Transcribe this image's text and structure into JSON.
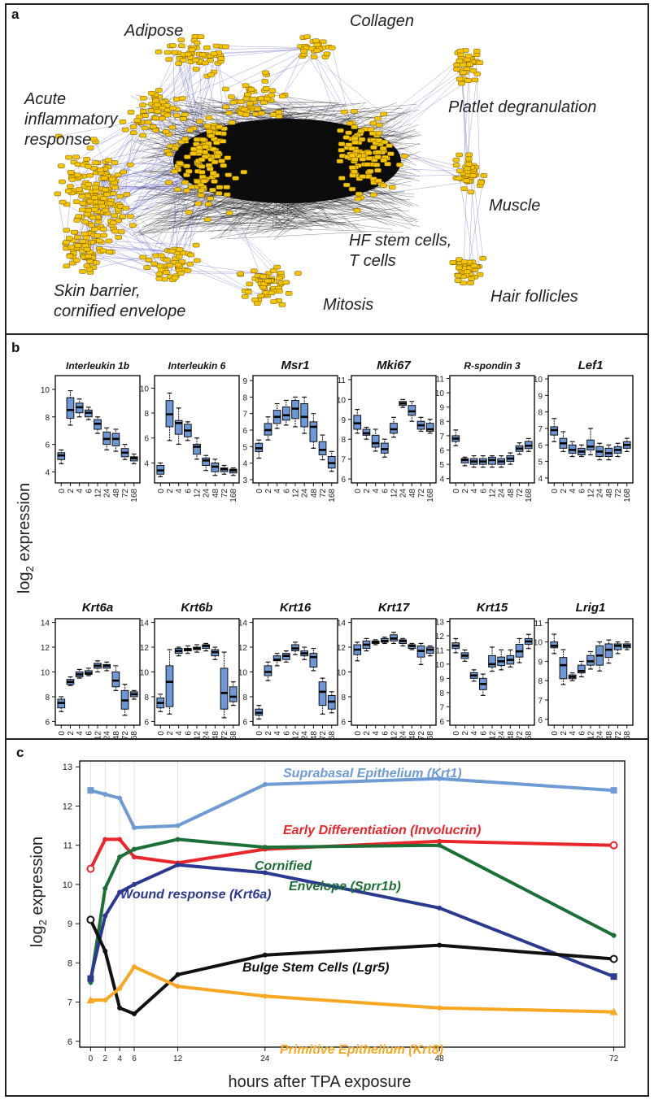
{
  "panel_a": {
    "label": "a",
    "clusters": [
      {
        "name": "Adipose"
      },
      {
        "name": "Collagen"
      },
      {
        "name": "Platlet degranulation"
      },
      {
        "name": "Acute"
      },
      {
        "name": "inflammatory"
      },
      {
        "name": "response"
      },
      {
        "name": "Muscle"
      },
      {
        "name": "HF stem cells,"
      },
      {
        "name": "T cells"
      },
      {
        "name": "Hair follicles"
      },
      {
        "name": "Skin barrier,"
      },
      {
        "name": "cornified envelope"
      },
      {
        "name": "Mitosis"
      }
    ]
  },
  "panel_b": {
    "label": "b",
    "ylabel": "log2 expression",
    "x_ticks": [
      "0",
      "2",
      "4",
      "6",
      "12",
      "24",
      "48",
      "72",
      "168"
    ],
    "plots": [
      {
        "title": "Interleukin 1b",
        "ylim": [
          3.2,
          11
        ],
        "yticks": [
          4,
          6,
          8,
          10
        ],
        "medians": [
          5.2,
          8.5,
          8.7,
          8.3,
          7.5,
          6.4,
          6.4,
          5.4,
          5.0
        ],
        "q1": [
          4.9,
          7.9,
          8.3,
          8.0,
          7.1,
          6.0,
          5.9,
          5.1,
          4.8
        ],
        "q3": [
          5.4,
          9.4,
          9.0,
          8.5,
          7.8,
          6.9,
          6.8,
          5.7,
          5.1
        ],
        "wlo": [
          4.6,
          7.4,
          8.0,
          7.8,
          6.8,
          5.6,
          5.5,
          4.9,
          4.6
        ],
        "whi": [
          5.6,
          9.9,
          9.3,
          8.7,
          8.0,
          7.2,
          7.1,
          6.0,
          5.3
        ]
      },
      {
        "title": "Interleukin 6",
        "ylim": [
          2.4,
          11
        ],
        "yticks": [
          4,
          6,
          8,
          10
        ],
        "medians": [
          3.4,
          7.9,
          7.2,
          6.6,
          5.3,
          4.2,
          3.7,
          3.5,
          3.4
        ],
        "q1": [
          3.1,
          6.9,
          6.3,
          6.1,
          4.7,
          3.8,
          3.3,
          3.3,
          3.2
        ],
        "q3": [
          3.8,
          9.0,
          7.4,
          7.1,
          5.5,
          4.4,
          4.0,
          3.6,
          3.5
        ],
        "wlo": [
          2.9,
          5.8,
          5.5,
          5.8,
          4.3,
          3.4,
          3.0,
          3.1,
          3.0
        ],
        "whi": [
          4.0,
          9.6,
          8.4,
          7.3,
          6.0,
          4.6,
          4.3,
          3.8,
          3.6
        ]
      },
      {
        "title": "Msr1",
        "ylim": [
          2.8,
          9.3
        ],
        "yticks": [
          3,
          4,
          5,
          6,
          7,
          8,
          9
        ],
        "medians": [
          4.9,
          6.0,
          6.8,
          6.9,
          7.3,
          6.8,
          6.2,
          4.8,
          4.0
        ],
        "q1": [
          4.7,
          5.7,
          6.4,
          6.6,
          6.7,
          6.2,
          5.3,
          4.5,
          3.7
        ],
        "q3": [
          5.2,
          6.4,
          7.2,
          7.4,
          7.8,
          7.6,
          6.5,
          5.3,
          4.4
        ],
        "wlo": [
          4.3,
          5.4,
          6.1,
          6.3,
          6.2,
          5.8,
          4.9,
          4.2,
          3.5
        ],
        "whi": [
          5.4,
          6.8,
          7.6,
          7.8,
          8.0,
          8.0,
          7.0,
          5.7,
          4.7
        ]
      },
      {
        "title": "Mki67",
        "ylim": [
          5.8,
          11.2
        ],
        "yticks": [
          6,
          7,
          8,
          9,
          10,
          11
        ],
        "medians": [
          8.8,
          8.3,
          7.8,
          7.5,
          8.5,
          9.8,
          9.4,
          8.7,
          8.5
        ],
        "q1": [
          8.5,
          8.2,
          7.6,
          7.3,
          8.3,
          9.7,
          9.2,
          8.5,
          8.4
        ],
        "q3": [
          9.2,
          8.5,
          8.2,
          7.8,
          8.8,
          9.9,
          9.7,
          8.9,
          8.8
        ],
        "wlo": [
          8.3,
          8.0,
          7.4,
          7.1,
          8.1,
          9.6,
          8.9,
          8.4,
          8.3
        ],
        "whi": [
          9.5,
          8.6,
          8.5,
          8.0,
          9.1,
          10.0,
          9.9,
          9.1,
          9.0
        ]
      },
      {
        "title": "R-spondin 3",
        "ylim": [
          3.7,
          11.2
        ],
        "yticks": [
          4,
          5,
          6,
          7,
          8,
          9,
          10,
          11
        ],
        "medians": [
          6.8,
          5.3,
          5.2,
          5.2,
          5.3,
          5.2,
          5.4,
          6.1,
          6.3
        ],
        "q1": [
          6.6,
          5.1,
          5.0,
          5.0,
          5.0,
          5.0,
          5.2,
          5.9,
          6.1
        ],
        "q3": [
          7.0,
          5.4,
          5.4,
          5.4,
          5.5,
          5.4,
          5.6,
          6.3,
          6.6
        ],
        "wlo": [
          6.3,
          4.9,
          4.8,
          4.8,
          4.8,
          4.8,
          5.0,
          5.7,
          5.9
        ],
        "whi": [
          7.4,
          5.5,
          5.6,
          5.6,
          5.6,
          5.6,
          5.8,
          6.5,
          6.8
        ]
      },
      {
        "title": "Lef1",
        "ylim": [
          3.7,
          10.2
        ],
        "yticks": [
          4,
          5,
          6,
          7,
          8,
          9,
          10
        ],
        "medians": [
          6.9,
          6.1,
          5.7,
          5.6,
          5.9,
          5.6,
          5.5,
          5.7,
          6.0
        ],
        "q1": [
          6.6,
          5.8,
          5.5,
          5.4,
          5.7,
          5.3,
          5.3,
          5.5,
          5.8
        ],
        "q3": [
          7.1,
          6.4,
          6.0,
          5.8,
          6.3,
          5.9,
          5.8,
          5.9,
          6.2
        ],
        "wlo": [
          6.2,
          5.6,
          5.3,
          5.3,
          5.4,
          5.1,
          5.1,
          5.3,
          5.6
        ],
        "whi": [
          7.6,
          6.8,
          6.2,
          6.0,
          7.0,
          6.1,
          6.0,
          6.1,
          6.4
        ]
      },
      {
        "title": "Krt6a",
        "ylim": [
          5.7,
          14.3
        ],
        "yticks": [
          6,
          8,
          10,
          12,
          14
        ],
        "medians": [
          7.5,
          9.2,
          9.8,
          9.9,
          10.5,
          10.5,
          9.3,
          7.7,
          8.2
        ],
        "q1": [
          7.1,
          9.0,
          9.6,
          9.8,
          10.3,
          10.3,
          8.8,
          7.0,
          8.0
        ],
        "q3": [
          7.8,
          9.4,
          10.0,
          10.1,
          10.7,
          10.6,
          10.0,
          8.5,
          8.4
        ],
        "wlo": [
          6.8,
          8.9,
          9.5,
          9.7,
          10.0,
          10.1,
          8.5,
          6.5,
          7.8
        ],
        "whi": [
          8.0,
          9.6,
          10.2,
          10.3,
          10.9,
          10.8,
          10.5,
          9.0,
          8.5
        ]
      },
      {
        "title": "Krt6b",
        "ylim": [
          5.7,
          14.3
        ],
        "yticks": [
          6,
          8,
          10,
          12,
          14
        ],
        "medians": [
          7.5,
          9.2,
          11.7,
          11.8,
          11.9,
          12.1,
          11.6,
          8.3,
          8.0
        ],
        "q1": [
          7.1,
          7.2,
          11.5,
          11.7,
          11.8,
          11.9,
          11.3,
          7.0,
          7.6
        ],
        "q3": [
          7.9,
          10.5,
          11.9,
          11.9,
          12.0,
          12.2,
          11.8,
          10.3,
          8.8
        ],
        "wlo": [
          6.8,
          6.6,
          11.3,
          11.5,
          11.6,
          11.7,
          11.0,
          6.3,
          7.3
        ],
        "whi": [
          8.2,
          11.8,
          12.0,
          12.1,
          12.2,
          12.3,
          12.0,
          11.6,
          9.2
        ]
      },
      {
        "title": "Krt16",
        "ylim": [
          5.7,
          14.3
        ],
        "yticks": [
          6,
          8,
          10,
          12,
          14
        ],
        "medians": [
          6.7,
          10.0,
          11.0,
          11.3,
          11.9,
          11.5,
          11.2,
          8.4,
          7.6
        ],
        "q1": [
          6.5,
          9.7,
          10.9,
          11.0,
          11.7,
          11.3,
          10.4,
          7.3,
          7.0
        ],
        "q3": [
          7.0,
          10.5,
          11.3,
          11.5,
          12.2,
          11.7,
          11.5,
          9.2,
          8.1
        ],
        "wlo": [
          6.2,
          9.3,
          10.5,
          10.8,
          11.4,
          11.0,
          10.1,
          6.6,
          6.7
        ],
        "whi": [
          7.3,
          10.8,
          11.5,
          11.7,
          12.4,
          12.0,
          11.9,
          9.5,
          8.4
        ]
      },
      {
        "title": "Krt17",
        "ylim": [
          5.7,
          14.3
        ],
        "yticks": [
          6,
          8,
          10,
          12,
          14
        ],
        "medians": [
          11.8,
          12.2,
          12.4,
          12.5,
          12.7,
          12.5,
          12.1,
          11.7,
          11.8
        ],
        "q1": [
          11.4,
          11.9,
          12.3,
          12.4,
          12.5,
          12.3,
          11.9,
          11.2,
          11.5
        ],
        "q3": [
          12.2,
          12.5,
          12.5,
          12.7,
          13.0,
          12.6,
          12.2,
          12.1,
          12.0
        ],
        "wlo": [
          10.9,
          11.7,
          12.2,
          12.3,
          12.3,
          12.1,
          11.8,
          10.6,
          11.3
        ],
        "whi": [
          12.4,
          12.7,
          12.6,
          12.8,
          13.2,
          12.7,
          12.3,
          12.3,
          12.1
        ]
      },
      {
        "title": "Krt15",
        "ylim": [
          5.7,
          13.2
        ],
        "yticks": [
          6,
          7,
          8,
          9,
          10,
          11,
          12,
          13
        ],
        "medians": [
          11.3,
          10.6,
          9.2,
          8.6,
          10.0,
          10.2,
          10.3,
          10.9,
          11.6
        ],
        "q1": [
          11.1,
          10.4,
          9.0,
          8.2,
          9.8,
          9.9,
          10.0,
          10.5,
          11.4
        ],
        "q3": [
          11.5,
          10.8,
          9.4,
          9.0,
          10.6,
          10.5,
          10.6,
          11.4,
          11.8
        ],
        "wlo": [
          10.8,
          10.2,
          8.8,
          7.8,
          9.5,
          9.6,
          9.8,
          10.1,
          11.1
        ],
        "whi": [
          11.8,
          11.0,
          9.6,
          9.3,
          11.2,
          11.0,
          11.0,
          11.8,
          12.1
        ]
      },
      {
        "title": "Lrig1",
        "ylim": [
          5.7,
          11.2
        ],
        "yticks": [
          6,
          7,
          8,
          9,
          10,
          11
        ],
        "medians": [
          9.8,
          8.8,
          8.2,
          8.5,
          9.0,
          9.3,
          9.6,
          9.8,
          9.8
        ],
        "q1": [
          9.7,
          8.1,
          8.1,
          8.4,
          8.8,
          8.8,
          9.2,
          9.6,
          9.7
        ],
        "q3": [
          10.0,
          9.2,
          8.3,
          8.8,
          9.3,
          9.8,
          9.9,
          9.9,
          9.9
        ],
        "wlo": [
          9.4,
          7.8,
          8.0,
          8.2,
          8.6,
          8.5,
          8.9,
          9.4,
          9.6
        ],
        "whi": [
          10.4,
          9.6,
          8.4,
          9.0,
          9.5,
          10.0,
          10.1,
          10.0,
          10.0
        ]
      }
    ]
  },
  "panel_c": {
    "label": "c",
    "chart_data": {
      "type": "line",
      "xlabel": "hours after TPA exposure",
      "ylabel": "log2 expression",
      "x": [
        0,
        2,
        4,
        6,
        12,
        24,
        48,
        72
      ],
      "xlim": [
        -1.5,
        73.5
      ],
      "ylim": [
        5.85,
        13.15
      ],
      "yticks": [
        6,
        7,
        8,
        9,
        10,
        11,
        12,
        13
      ],
      "xticks": [
        0,
        2,
        4,
        6,
        12,
        24,
        48,
        72
      ],
      "series": [
        {
          "name": "Suprabasal Epithelium (Krt1)",
          "color": "#6f9bd4",
          "marker": "square",
          "values": [
            12.4,
            12.3,
            12.2,
            11.45,
            11.5,
            12.55,
            12.7,
            12.4
          ]
        },
        {
          "name": "Early Differentiation (Involucrin)",
          "color": "#e8262b",
          "marker": "circle",
          "values": [
            10.4,
            11.15,
            11.15,
            10.7,
            10.55,
            10.9,
            11.1,
            11.0
          ]
        },
        {
          "name": "Cornified Envelope (Sprr1b)",
          "color": "#1d6f38",
          "marker": "none",
          "values": [
            7.5,
            9.9,
            10.7,
            10.9,
            11.15,
            10.95,
            11.0,
            8.7
          ]
        },
        {
          "name": "Wound response (Krt6a)",
          "color": "#2b3990",
          "marker": "square",
          "values": [
            7.6,
            9.2,
            9.8,
            10.0,
            10.5,
            10.3,
            9.4,
            7.65
          ]
        },
        {
          "name": "Bulge Stem Cells (Lgr5)",
          "color": "#111111",
          "marker": "circle",
          "values": [
            9.1,
            8.3,
            6.85,
            6.7,
            7.7,
            8.2,
            8.45,
            8.1
          ]
        },
        {
          "name": "Primitive Epithelium (Krt8)",
          "color": "#f7a823",
          "marker": "triangle",
          "values": [
            7.05,
            7.05,
            7.35,
            7.9,
            7.4,
            7.15,
            6.85,
            6.75
          ]
        }
      ],
      "labels": [
        {
          "text": "Suprabasal Epithelium (Krt1)",
          "color": "#6f9bd4"
        },
        {
          "text": "Early Differentiation (Involucrin)",
          "color": "#e8262b"
        },
        {
          "text": "Cornified",
          "color": "#1d6f38"
        },
        {
          "text": "Envelope (Sprr1b)",
          "color": "#1d6f38"
        },
        {
          "text": "Wound response (Krt6a)",
          "color": "#2b3990"
        },
        {
          "text": "Bulge Stem Cells (Lgr5)",
          "color": "#111111"
        },
        {
          "text": "Primitive Epithelium (Krt8)",
          "color": "#f7a823"
        }
      ]
    }
  }
}
